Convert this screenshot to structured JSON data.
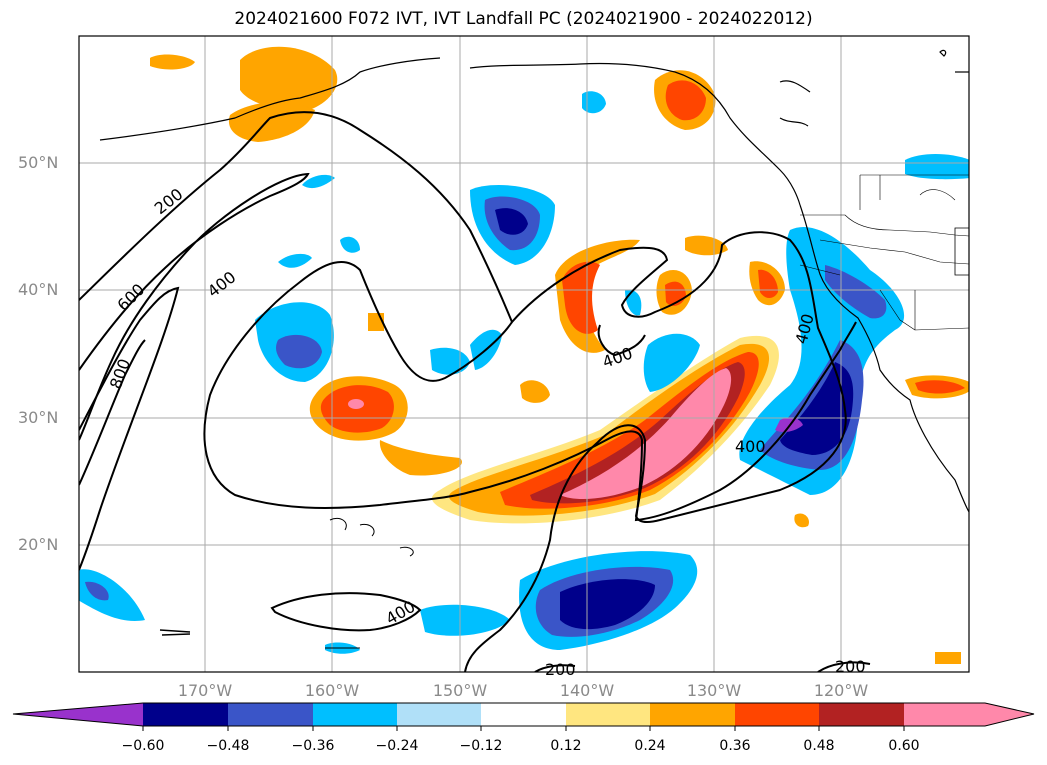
{
  "title": "2024021600 F072 IVT, IVT Landfall PC (2024021900 - 2024022012)",
  "map": {
    "lat_labels": [
      "50°N",
      "40°N",
      "30°N",
      "20°N"
    ],
    "lon_labels": [
      "170°W",
      "160°W",
      "150°W",
      "140°W",
      "130°W",
      "120°W"
    ],
    "contour_labels": [
      "200",
      "400",
      "600",
      "800",
      "400",
      "400",
      "400",
      "400",
      "200",
      "200"
    ]
  },
  "colorbar": {
    "ticks": [
      "−0.60",
      "−0.48",
      "−0.36",
      "−0.24",
      "−0.12",
      "0.12",
      "0.24",
      "0.36",
      "0.48",
      "0.60"
    ],
    "colors": [
      "#9932cc",
      "#00008b",
      "#3a55c8",
      "#00bfff",
      "#b0e0f8",
      "#ffffff",
      "#ffe680",
      "#ffa500",
      "#ff4500",
      "#b22222",
      "#ff88aa"
    ]
  }
}
